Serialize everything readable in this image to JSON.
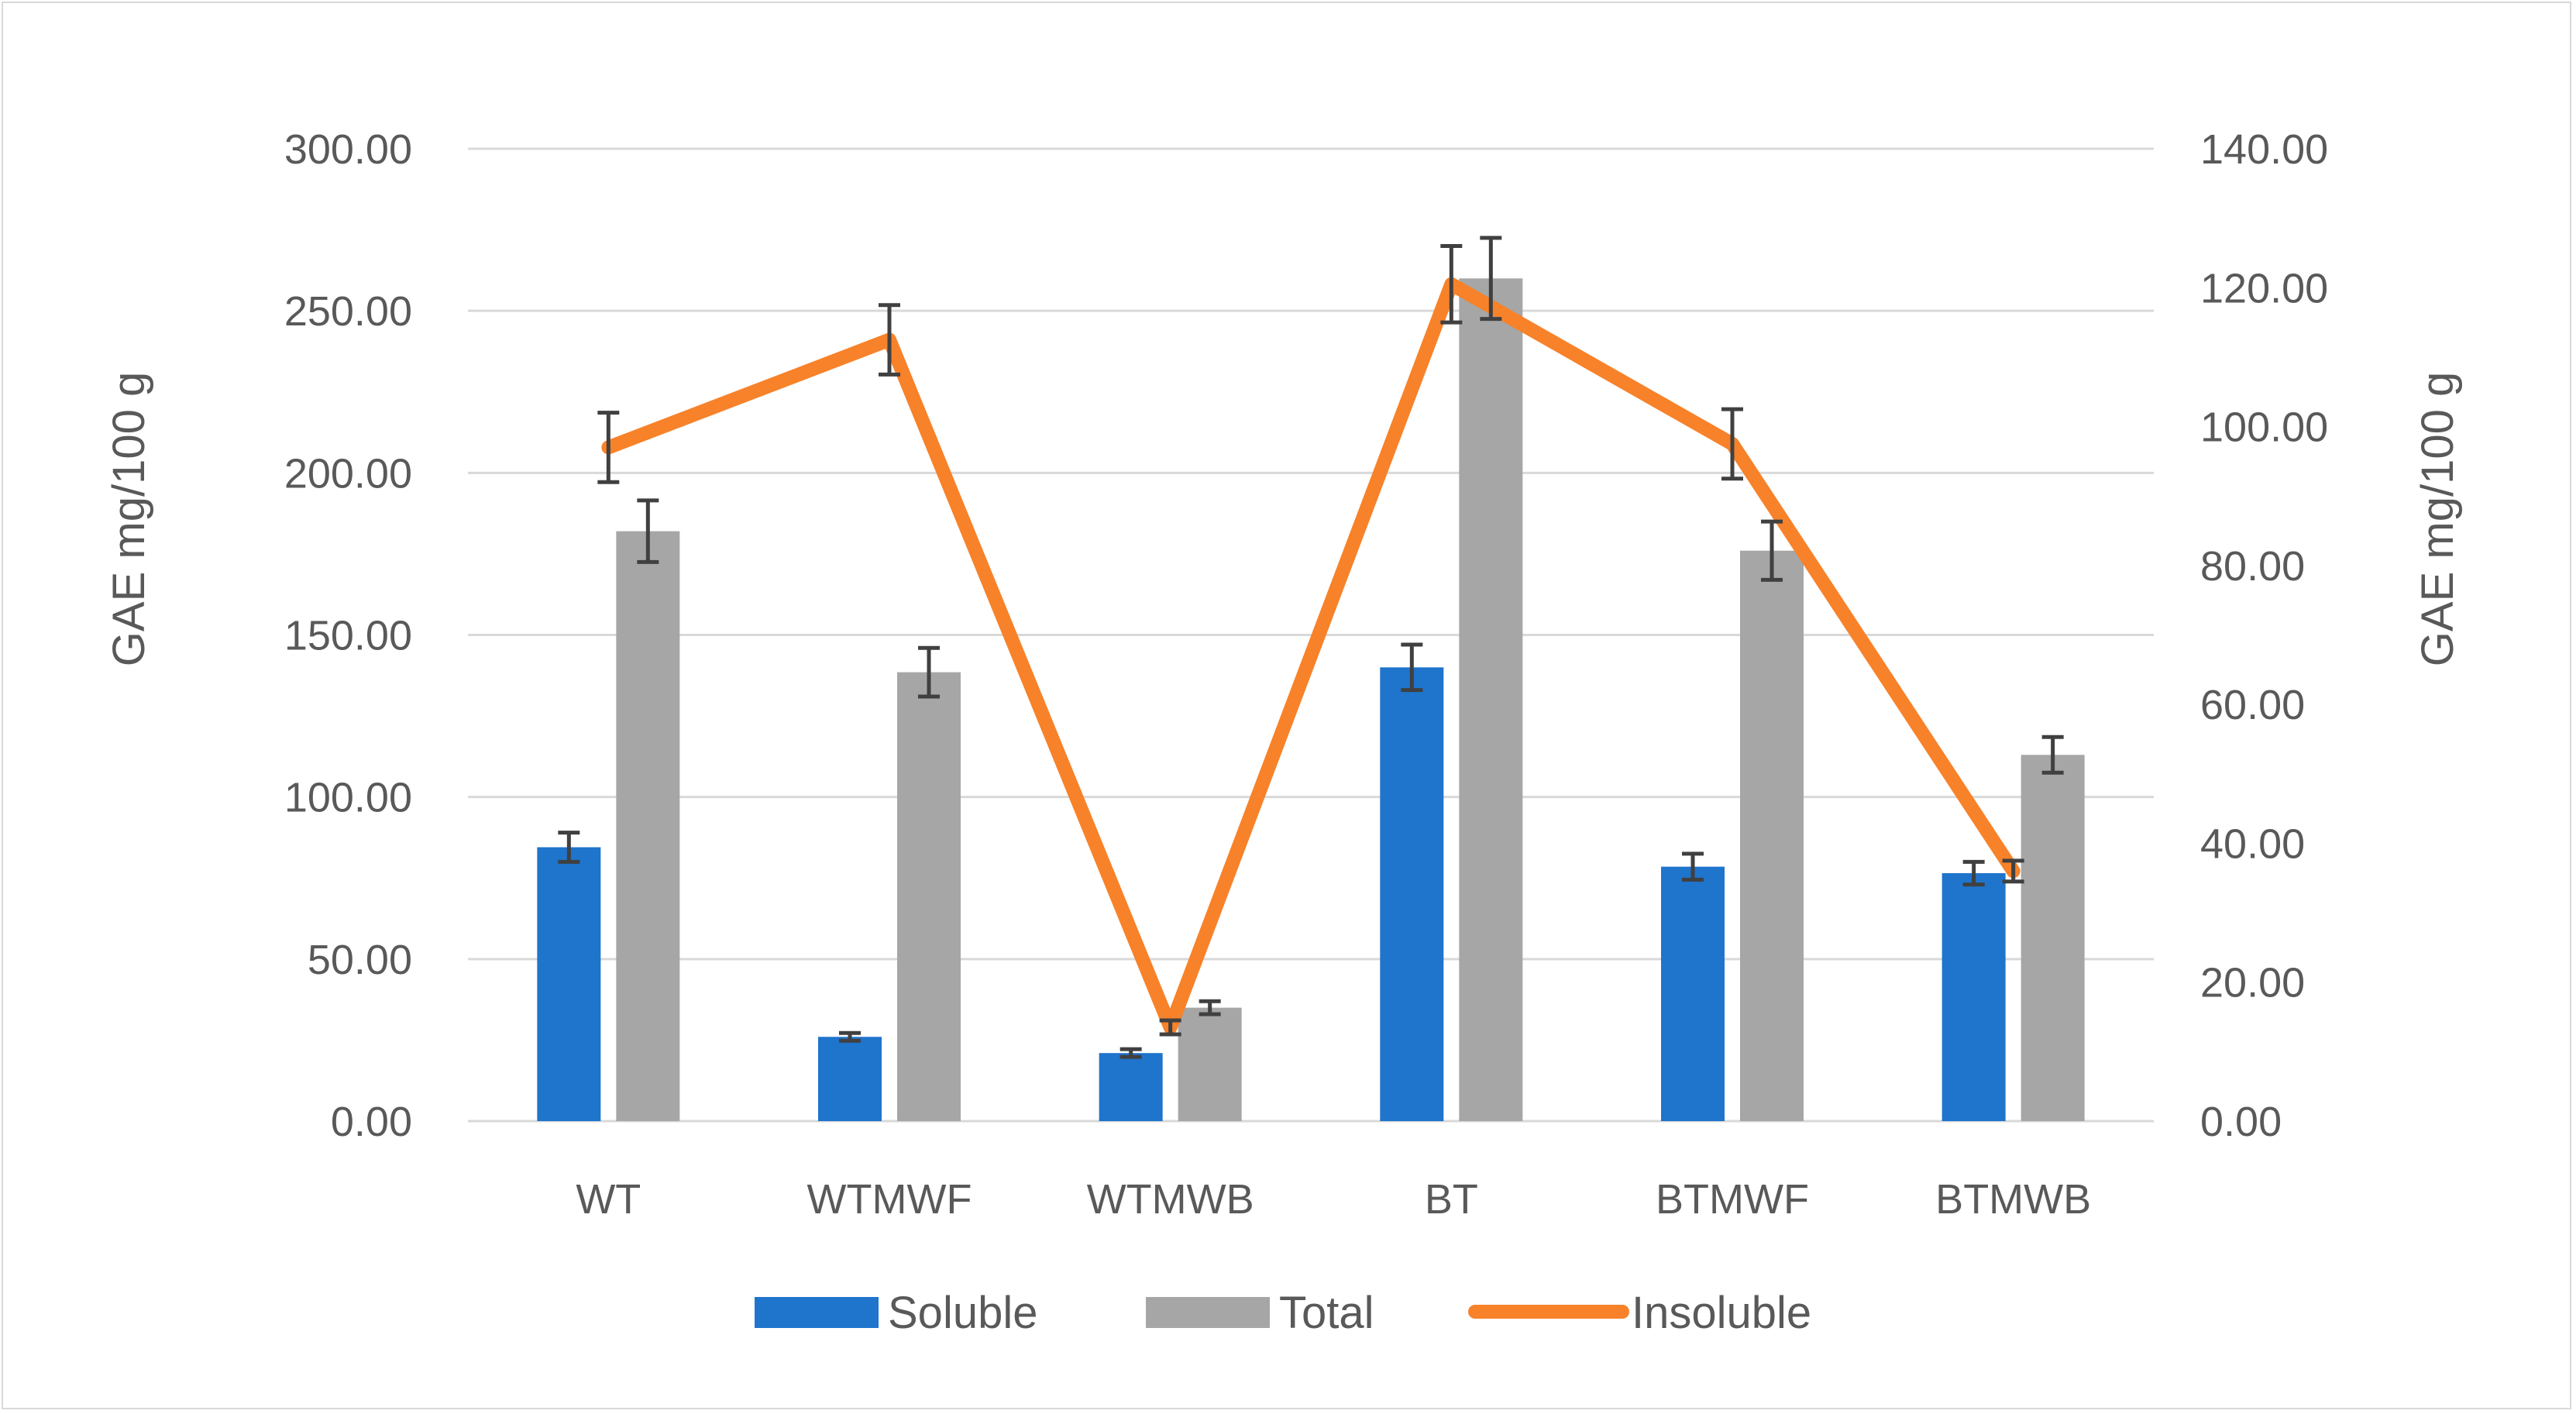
{
  "chart_data": {
    "type": "bar",
    "title": "",
    "categories": [
      "WT",
      "WTMWF",
      "WTMWB",
      "BT",
      "BTMWF",
      "BTMWB"
    ],
    "series": [
      {
        "name": "Soluble",
        "kind": "bar",
        "axis": "left",
        "color": "#1f74cc",
        "values": [
          84.5,
          26.0,
          21.0,
          140.0,
          78.5,
          76.5
        ],
        "errors": [
          4.5,
          1.2,
          1.2,
          7.0,
          4.0,
          3.5
        ]
      },
      {
        "name": "Total",
        "kind": "bar",
        "axis": "left",
        "color": "#a6a6a6",
        "values": [
          182.0,
          138.5,
          35.0,
          260.0,
          176.0,
          113.0
        ],
        "errors": [
          9.5,
          7.5,
          2.0,
          12.5,
          9.0,
          5.5
        ]
      },
      {
        "name": "Insoluble",
        "kind": "line",
        "axis": "right",
        "color": "#f7822a",
        "values": [
          97.0,
          112.5,
          13.5,
          120.5,
          97.5,
          36.0
        ],
        "errors": [
          5.0,
          5.0,
          1.0,
          5.5,
          5.0,
          1.5
        ]
      }
    ],
    "left_axis": {
      "label": "GAE mg/100 g",
      "ylim": [
        0,
        300
      ],
      "ticks": [
        "0.00",
        "50.00",
        "100.00",
        "150.00",
        "200.00",
        "250.00",
        "300.00"
      ]
    },
    "right_axis": {
      "label": "GAE mg/100 g",
      "ylim": [
        0,
        140
      ],
      "ticks": [
        "0.00",
        "20.00",
        "40.00",
        "60.00",
        "80.00",
        "100.00",
        "120.00",
        "140.00"
      ]
    },
    "grid": true,
    "legend": {
      "position": "bottom",
      "items": [
        "Soluble",
        "Total",
        "Insoluble"
      ]
    },
    "colors": {
      "gridline": "#d9d9d9",
      "text": "#595959",
      "errorbar": "#404040"
    }
  }
}
